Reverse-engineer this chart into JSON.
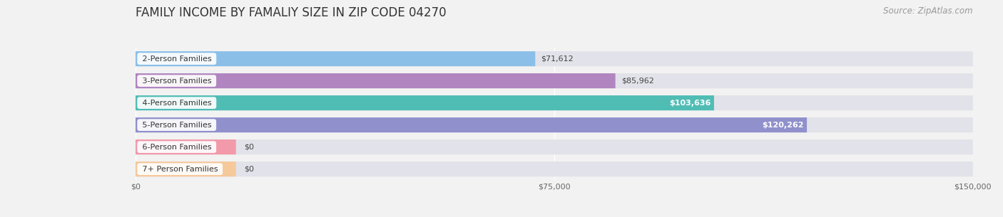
{
  "title": "FAMILY INCOME BY FAMALIY SIZE IN ZIP CODE 04270",
  "source": "Source: ZipAtlas.com",
  "categories": [
    "2-Person Families",
    "3-Person Families",
    "4-Person Families",
    "5-Person Families",
    "6-Person Families",
    "7+ Person Families"
  ],
  "values": [
    71612,
    85962,
    103636,
    120262,
    0,
    0
  ],
  "bar_colors": [
    "#8bbfe8",
    "#b085c0",
    "#50bdb5",
    "#9090cc",
    "#f299aa",
    "#f5c99a"
  ],
  "xlim": [
    0,
    150000
  ],
  "xticks": [
    0,
    75000,
    150000
  ],
  "xtick_labels": [
    "$0",
    "$75,000",
    "$150,000"
  ],
  "background_color": "#f2f2f2",
  "bar_bg_color": "#e2e2ea",
  "title_fontsize": 12,
  "label_fontsize": 8,
  "value_fontsize": 8,
  "source_fontsize": 8.5,
  "bar_height": 0.68,
  "bar_gap": 0.32
}
